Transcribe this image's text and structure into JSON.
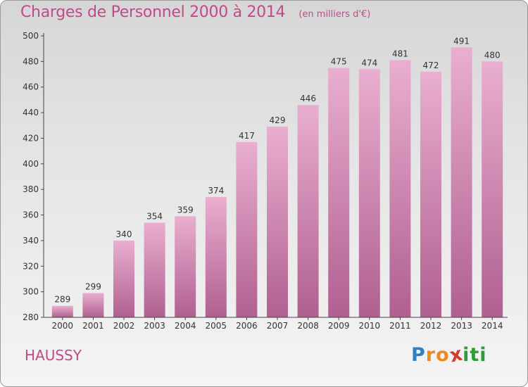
{
  "chart_data": {
    "type": "bar",
    "title": "Charges de Personnel 2000 à 2014",
    "subtitle": "(en milliers d'€)",
    "categories": [
      "2000",
      "2001",
      "2002",
      "2003",
      "2004",
      "2005",
      "2006",
      "2007",
      "2008",
      "2009",
      "2010",
      "2011",
      "2012",
      "2013",
      "2014"
    ],
    "values": [
      289,
      299,
      340,
      354,
      359,
      374,
      417,
      429,
      446,
      475,
      474,
      481,
      472,
      491,
      480
    ],
    "ylim": [
      280,
      500
    ],
    "yticks": [
      280,
      300,
      320,
      340,
      360,
      380,
      400,
      420,
      440,
      460,
      480,
      500
    ],
    "xlabel": "",
    "ylabel": "",
    "grid": false,
    "colors": {
      "bar_top": "#e9aed0",
      "bar_bottom": "#b0608f",
      "accent": "#c04a8a"
    }
  },
  "commune": "HAUSSY",
  "logo": {
    "letters": [
      "P",
      "r",
      "o",
      "x",
      "i",
      "t",
      "i"
    ],
    "colors": [
      "#2f7fc1",
      "#f08a1c",
      "#f08a1c",
      "#d63a2f",
      "#2f9b3a",
      "#2f9b3a",
      "#2f9b3a"
    ]
  }
}
